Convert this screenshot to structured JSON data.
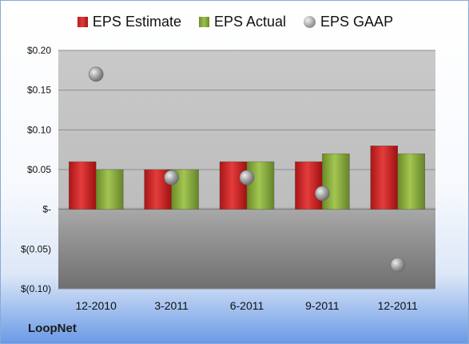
{
  "chart_data": {
    "type": "bar",
    "categories": [
      "12-2010",
      "3-2011",
      "6-2011",
      "9-2011",
      "12-2011"
    ],
    "series": [
      {
        "name": "EPS Estimate",
        "kind": "bar",
        "color": "#d42a2a",
        "values": [
          0.06,
          0.05,
          0.06,
          0.06,
          0.08
        ]
      },
      {
        "name": "EPS Actual",
        "kind": "bar",
        "color": "#8db33a",
        "values": [
          0.05,
          0.05,
          0.06,
          0.07,
          0.07
        ]
      },
      {
        "name": "EPS GAAP",
        "kind": "scatter",
        "color": "#9a9a9a",
        "values": [
          0.17,
          0.04,
          0.04,
          0.02,
          -0.07
        ]
      }
    ],
    "ylim": [
      -0.1,
      0.2
    ],
    "yticks": [
      0.2,
      0.15,
      0.1,
      0.05,
      0,
      -0.05,
      -0.1
    ],
    "ytick_labels": [
      "$0.20",
      "$0.15",
      "$0.10",
      "$0.05",
      "$-",
      "$(0.05)",
      "$(0.10)"
    ],
    "grid": true,
    "legend_position": "top"
  },
  "legend": {
    "estimate_label": "EPS Estimate",
    "actual_label": "EPS Actual",
    "gaap_label": "EPS GAAP"
  },
  "brand": "LoopNet"
}
